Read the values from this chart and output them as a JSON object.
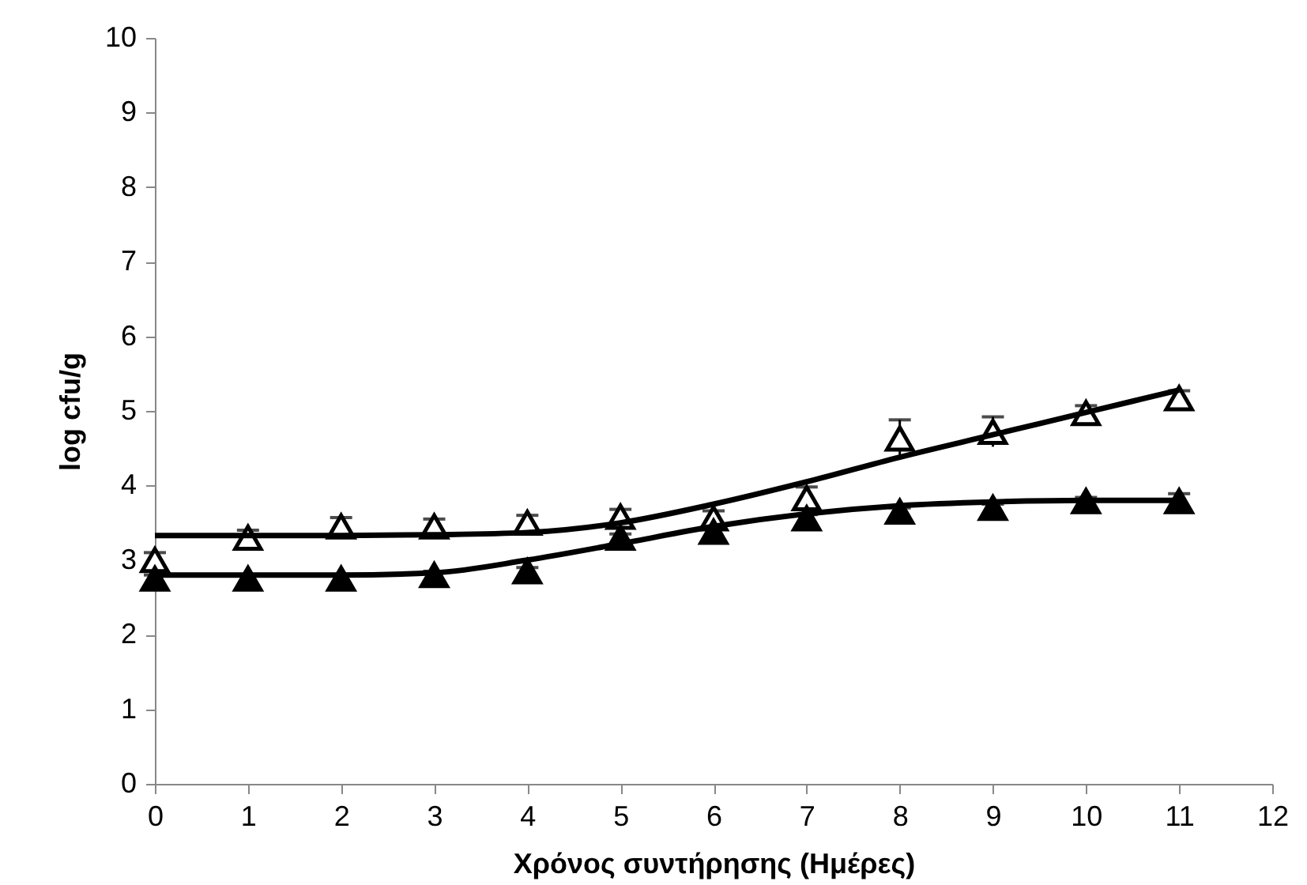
{
  "chart_data": {
    "type": "scatter",
    "xlabel": "Χρόνος συντήρησης (Ημέρες)",
    "ylabel": "log cfu/g",
    "xlim": [
      0,
      12
    ],
    "xticks": [
      0,
      1,
      2,
      3,
      4,
      5,
      6,
      7,
      8,
      9,
      10,
      11,
      12
    ],
    "ylim": [
      0,
      10
    ],
    "yticks": [
      0,
      1,
      2,
      3,
      4,
      5,
      6,
      7,
      8,
      9,
      10
    ],
    "grid": false,
    "marker": "triangle",
    "x": [
      0,
      1,
      2,
      3,
      4,
      5,
      6,
      7,
      8,
      9,
      10,
      11
    ],
    "series": [
      {
        "color": "#000000",
        "values": [
          3.0,
          3.3,
          3.45,
          3.45,
          3.5,
          3.58,
          3.56,
          3.83,
          4.63,
          4.72,
          4.97,
          5.17
        ],
        "errors": [
          0.1,
          0.1,
          0.12,
          0.1,
          0.1,
          0.1,
          0.1,
          0.15,
          0.25,
          0.2,
          0.1,
          0.1
        ]
      },
      {
        "color": "#000000",
        "values": [
          2.75,
          2.75,
          2.75,
          2.8,
          2.85,
          3.3,
          3.38,
          3.56,
          3.65,
          3.7,
          3.79,
          3.79
        ],
        "errors": [
          0.05,
          0.05,
          0.05,
          0.05,
          0.05,
          0.05,
          0.05,
          0.05,
          0.05,
          0.05,
          0.05,
          0.1
        ]
      },
      {
        "type": "line",
        "marker": "none",
        "color": "#000000",
        "x": [
          0,
          1,
          2,
          3,
          4,
          5,
          6,
          7,
          8,
          9,
          10,
          11
        ],
        "values": [
          3.33,
          3.33,
          3.33,
          3.34,
          3.37,
          3.5,
          3.75,
          4.05,
          4.38,
          4.68,
          4.98,
          5.28
        ]
      },
      {
        "type": "line",
        "marker": "none",
        "color": "#000000",
        "x": [
          0,
          1,
          2,
          3,
          4,
          5,
          6,
          7,
          8,
          9,
          10,
          11
        ],
        "values": [
          2.8,
          2.8,
          2.8,
          2.83,
          3.0,
          3.22,
          3.45,
          3.62,
          3.73,
          3.78,
          3.8,
          3.8
        ]
      }
    ]
  }
}
